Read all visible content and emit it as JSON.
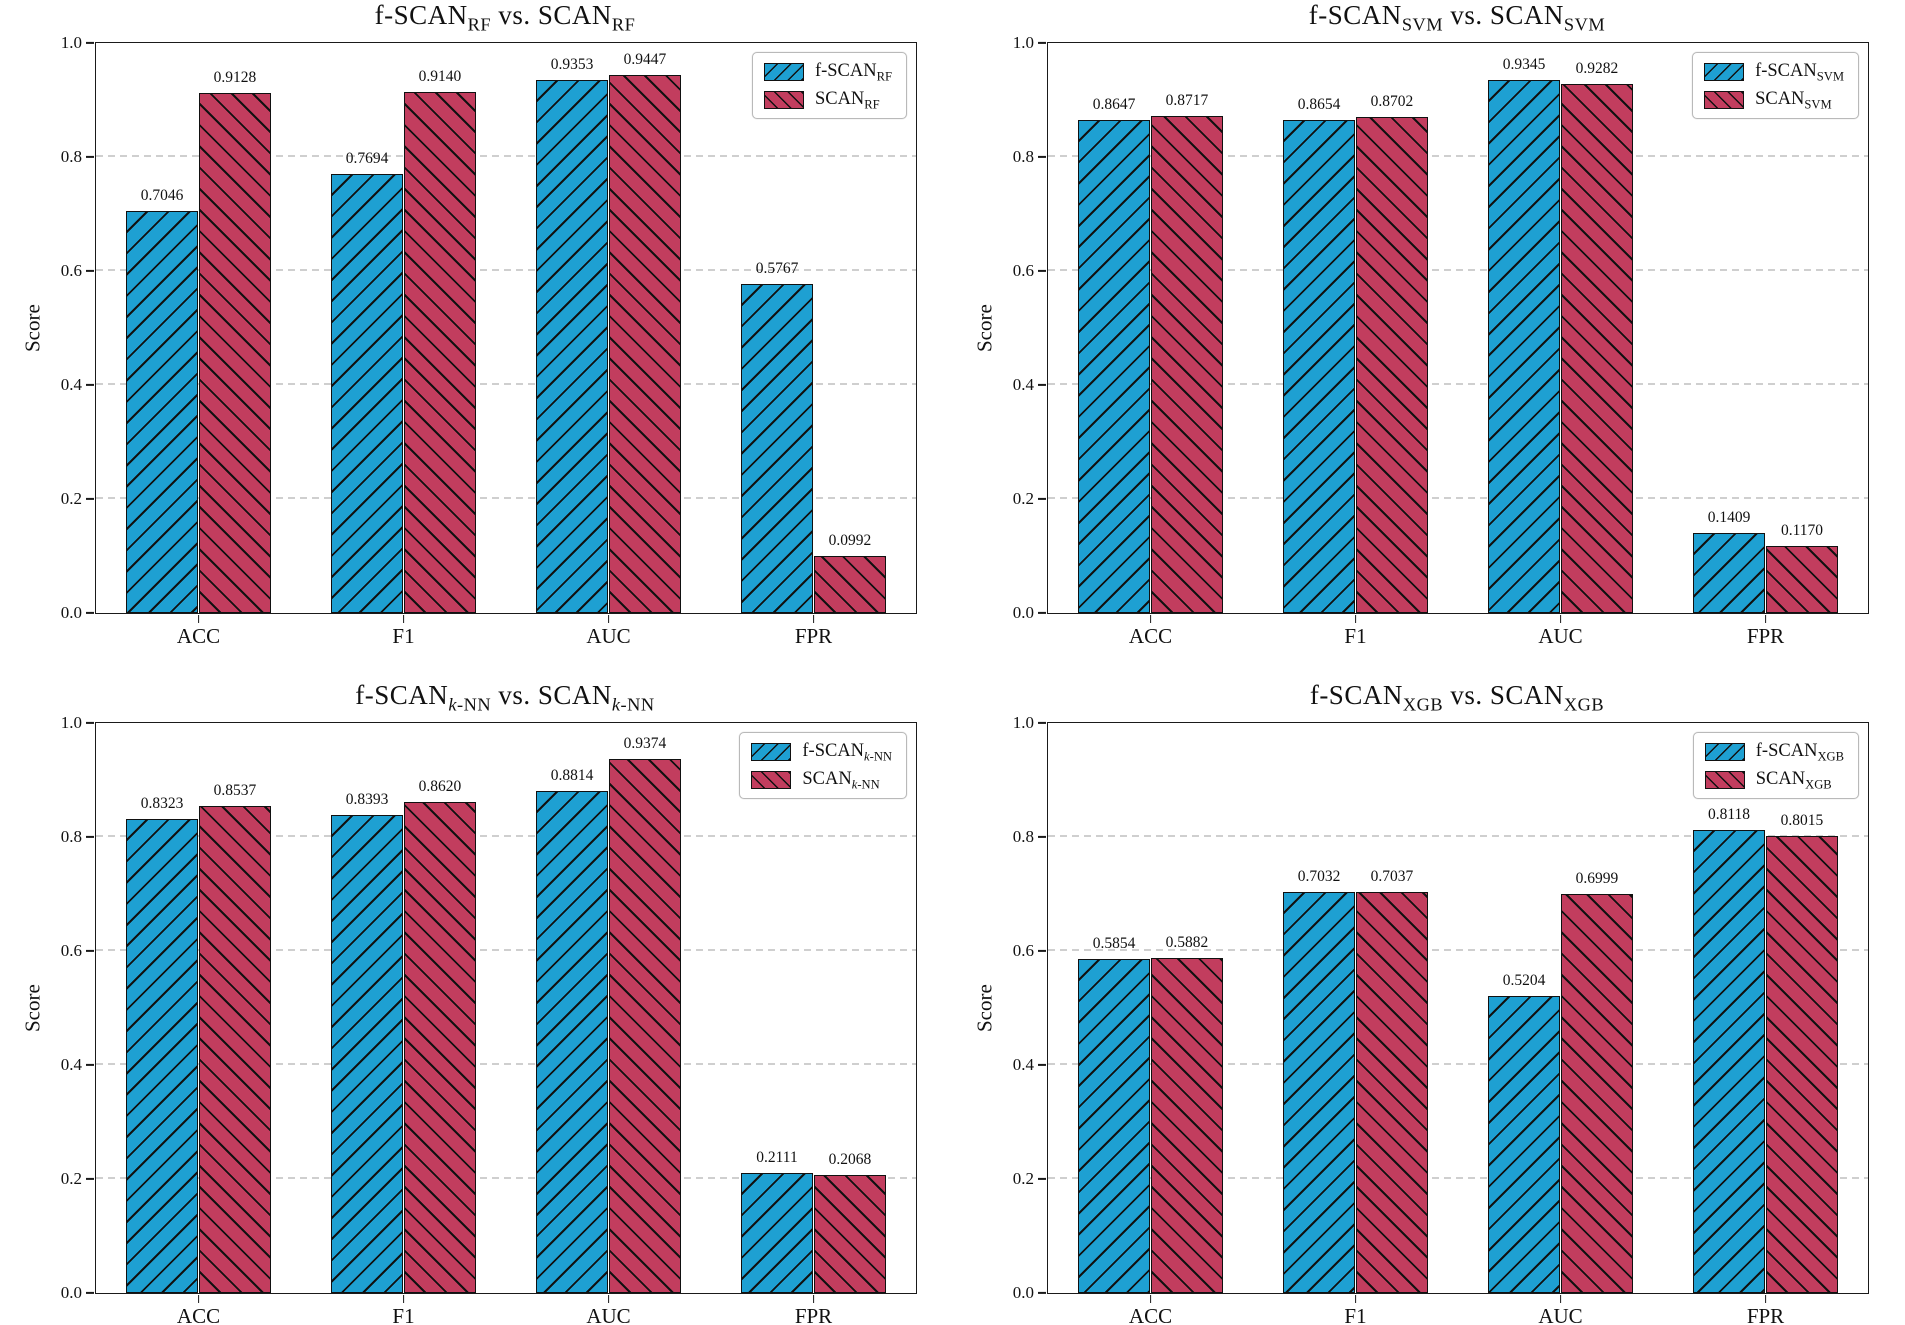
{
  "figure": {
    "background": "#ffffff",
    "colors": {
      "f_scan_fill": "#1EA0D2",
      "scan_fill": "#C23D5E",
      "bar_edge": "#111111",
      "grid": "#cfcfcf",
      "axis": "#1a1a1a"
    },
    "hatch": {
      "f_scan": "/",
      "scan": "\\"
    },
    "legend_position": "upper right"
  },
  "chart_data": [
    {
      "type": "bar",
      "title_segments": [
        {
          "text": "f-SCAN"
        },
        {
          "sub": "RF"
        },
        {
          "text": " vs. SCAN"
        },
        {
          "sub": "RF"
        }
      ],
      "categories": [
        "ACC",
        "F1",
        "AUC",
        "FPR"
      ],
      "series": [
        {
          "label_segments": [
            {
              "text": "f-SCAN"
            },
            {
              "sub": "RF"
            }
          ],
          "values": [
            "0.7046",
            "0.7694",
            "0.9353",
            "0.5767"
          ]
        },
        {
          "label_segments": [
            {
              "text": "SCAN"
            },
            {
              "sub": "RF"
            }
          ],
          "values": [
            "0.9128",
            "0.9140",
            "0.9447",
            "0.0992"
          ]
        }
      ],
      "ylabel": "Score",
      "ylim": [
        0.0,
        1.0
      ],
      "yticks": [
        "0.0",
        "0.2",
        "0.4",
        "0.6",
        "0.8",
        "1.0"
      ],
      "grid": true
    },
    {
      "type": "bar",
      "title_segments": [
        {
          "text": "f-SCAN"
        },
        {
          "sub": "SVM"
        },
        {
          "text": " vs. SCAN"
        },
        {
          "sub": "SVM"
        }
      ],
      "categories": [
        "ACC",
        "F1",
        "AUC",
        "FPR"
      ],
      "series": [
        {
          "label_segments": [
            {
              "text": "f-SCAN"
            },
            {
              "sub": "SVM"
            }
          ],
          "values": [
            "0.8647",
            "0.8654",
            "0.9345",
            "0.1409"
          ]
        },
        {
          "label_segments": [
            {
              "text": "SCAN"
            },
            {
              "sub": "SVM"
            }
          ],
          "values": [
            "0.8717",
            "0.8702",
            "0.9282",
            "0.1170"
          ]
        }
      ],
      "ylabel": "Score",
      "ylim": [
        0.0,
        1.0
      ],
      "yticks": [
        "0.0",
        "0.2",
        "0.4",
        "0.6",
        "0.8",
        "1.0"
      ],
      "grid": true
    },
    {
      "type": "bar",
      "title_segments": [
        {
          "text": "f-SCAN"
        },
        {
          "sub": "k-NN",
          "ital": true
        },
        {
          "text": " vs. SCAN"
        },
        {
          "sub": "k-NN",
          "ital": true
        }
      ],
      "categories": [
        "ACC",
        "F1",
        "AUC",
        "FPR"
      ],
      "series": [
        {
          "label_segments": [
            {
              "text": "f-SCAN"
            },
            {
              "sub": "k-NN",
              "ital": true
            }
          ],
          "values": [
            "0.8323",
            "0.8393",
            "0.8814",
            "0.2111"
          ]
        },
        {
          "label_segments": [
            {
              "text": "SCAN"
            },
            {
              "sub": "k-NN",
              "ital": true
            }
          ],
          "values": [
            "0.8537",
            "0.8620",
            "0.9374",
            "0.2068"
          ]
        }
      ],
      "ylabel": "Score",
      "ylim": [
        0.0,
        1.0
      ],
      "yticks": [
        "0.0",
        "0.2",
        "0.4",
        "0.6",
        "0.8",
        "1.0"
      ],
      "grid": true
    },
    {
      "type": "bar",
      "title_segments": [
        {
          "text": "f-SCAN"
        },
        {
          "sub": "XGB"
        },
        {
          "text": " vs. SCAN"
        },
        {
          "sub": "XGB"
        }
      ],
      "categories": [
        "ACC",
        "F1",
        "AUC",
        "FPR"
      ],
      "series": [
        {
          "label_segments": [
            {
              "text": "f-SCAN"
            },
            {
              "sub": "XGB"
            }
          ],
          "values": [
            "0.5854",
            "0.7032",
            "0.5204",
            "0.8118"
          ]
        },
        {
          "label_segments": [
            {
              "text": "SCAN"
            },
            {
              "sub": "XGB"
            }
          ],
          "values": [
            "0.5882",
            "0.7037",
            "0.6999",
            "0.8015"
          ]
        }
      ],
      "ylabel": "Score",
      "ylim": [
        0.0,
        1.0
      ],
      "yticks": [
        "0.0",
        "0.2",
        "0.4",
        "0.6",
        "0.8",
        "1.0"
      ],
      "grid": true
    }
  ]
}
